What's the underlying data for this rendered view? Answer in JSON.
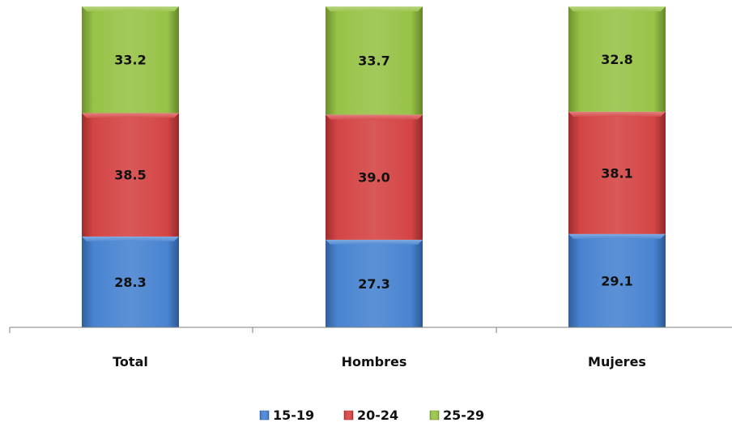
{
  "chart_data": {
    "type": "bar",
    "stacked": true,
    "normalized": true,
    "categories": [
      "Total",
      "Hombres",
      "Mujeres"
    ],
    "series": [
      {
        "name": "15-19",
        "values": [
          28.3,
          27.3,
          29.1
        ],
        "color": "#3f7ecf"
      },
      {
        "name": "20-24",
        "values": [
          38.5,
          39.0,
          38.1
        ],
        "color": "#d23b3b"
      },
      {
        "name": "25-29",
        "values": [
          33.2,
          33.7,
          32.8
        ],
        "color": "#92c03e"
      }
    ],
    "value_labels": [
      [
        "28.3",
        "27.3",
        "29.1"
      ],
      [
        "38.5",
        "39.0",
        "38.1"
      ],
      [
        "33.2",
        "33.7",
        "32.8"
      ]
    ],
    "ylim": [
      0,
      100
    ],
    "grid": false,
    "legend_position": "bottom"
  }
}
